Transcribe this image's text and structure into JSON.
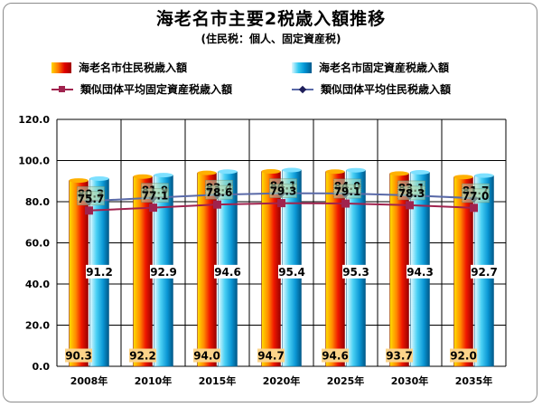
{
  "title": "海老名市主要2税歳入額推移",
  "subtitle": "(住民税：個人、固定資産税)",
  "legend": {
    "bar1": "海老名市住民税歳入額",
    "bar2": "海老名市固定資産税歳入額",
    "line1": "類似団体平均固定資産税歳入額",
    "line2": "類似団体平均住民税歳入額"
  },
  "colors": {
    "line1": "#a0234e",
    "line2": "#5a6aa8",
    "line2_marker": "#1e1e5a",
    "label_box": "#fcd48a"
  },
  "chart_data": {
    "type": "bar",
    "categories": [
      "2008年",
      "2010年",
      "2015年",
      "2020年",
      "2025年",
      "2030年",
      "2035年"
    ],
    "series": [
      {
        "name": "海老名市住民税歳入額",
        "kind": "bar",
        "values": [
          90.3,
          92.2,
          94.0,
          94.7,
          94.6,
          93.7,
          92.0
        ]
      },
      {
        "name": "海老名市固定資産税歳入額",
        "kind": "bar",
        "values": [
          91.2,
          92.9,
          94.6,
          95.4,
          95.3,
          94.3,
          92.7
        ]
      },
      {
        "name": "類似団体平均固定資産税歳入額",
        "kind": "line",
        "values": [
          75.7,
          77.1,
          78.6,
          79.3,
          79.1,
          78.3,
          77.0
        ]
      },
      {
        "name": "類似団体平均住民税歳入額",
        "kind": "line",
        "values": [
          80.3,
          81.9,
          83.4,
          84.1,
          84.0,
          83.1,
          81.7
        ]
      }
    ],
    "ylim": [
      0,
      120
    ],
    "yticks": [
      "0.0",
      "20.0",
      "40.0",
      "60.0",
      "80.0",
      "100.0",
      "120.0"
    ],
    "grid": true,
    "legend_position": "top"
  }
}
